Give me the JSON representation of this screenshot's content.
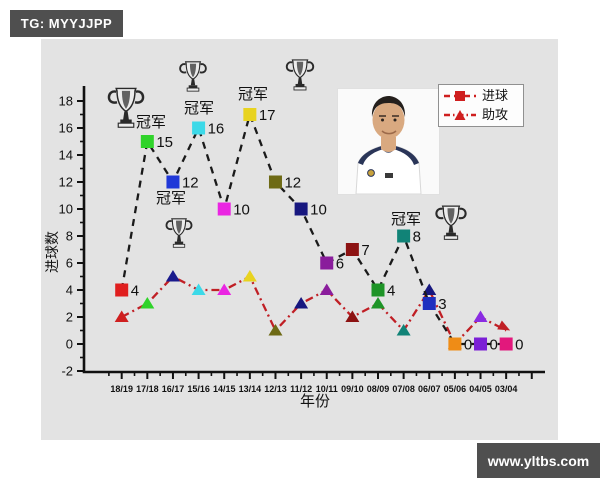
{
  "watermark_top": {
    "label": "TG: MYYJJPP",
    "bg": "#4f4f4f",
    "color": "#ffffff"
  },
  "watermark_bottom": {
    "label": "www.yltbs.com",
    "bg": "#4f4f4f",
    "color": "#ffffff"
  },
  "legend": {
    "items": [
      {
        "label": "进球",
        "marker": "square",
        "color": "#cf1f1f",
        "line_style": "dashed"
      },
      {
        "label": "助攻",
        "marker": "triangle",
        "color": "#cf1f1f",
        "line_style": "dashdot"
      }
    ]
  },
  "photo": {
    "alt": "player-portrait-white-jersey"
  },
  "chart_data": {
    "type": "line",
    "title": "",
    "xlabel": "年份",
    "ylabel": "进球数",
    "ylim": [
      -2,
      18
    ],
    "yticks": [
      -2,
      0,
      2,
      4,
      6,
      8,
      10,
      12,
      14,
      16,
      18
    ],
    "grid": false,
    "legend_position": "top-right",
    "categories": [
      "18/19",
      "17/18",
      "16/17",
      "15/16",
      "14/15",
      "13/14",
      "12/13",
      "11/12",
      "10/11",
      "09/10",
      "08/09",
      "07/08",
      "06/07",
      "05/06",
      "04/05",
      "03/04"
    ],
    "series": [
      {
        "name": "进球",
        "marker": "square",
        "line_color": "#1a1a1a",
        "line_style": "dashed",
        "values": [
          4,
          15,
          12,
          16,
          10,
          17,
          12,
          10,
          6,
          7,
          4,
          8,
          3,
          0,
          0,
          0
        ],
        "point_labels": [
          "4",
          "15",
          "12",
          "16",
          "10",
          "17",
          "12",
          "10",
          "6",
          "7",
          "4",
          "8",
          "3",
          "0",
          "0",
          "0"
        ],
        "marker_colors": [
          "#e01f1f",
          "#2fd32a",
          "#2038d8",
          "#3cd9e8",
          "#ea25e2",
          "#e8d31f",
          "#6e6a15",
          "#17177f",
          "#8a1d9c",
          "#8c1212",
          "#1e9427",
          "#118377",
          "#1f2fbf",
          "#ef8c16",
          "#7b1fd6",
          "#e2187c"
        ]
      },
      {
        "name": "助攻",
        "marker": "triangle",
        "line_color": "#c01f25",
        "line_style": "dashdot",
        "values": [
          2,
          3,
          5,
          4,
          4,
          5,
          1,
          3,
          4,
          2,
          3,
          1,
          4,
          0,
          2,
          1
        ],
        "marker_colors": [
          "#cf1f1f",
          "#2fd32a",
          "#1a1a8c",
          "#3cd9e8",
          "#ea25e2",
          "#e8d31f",
          "#6e6a15",
          "#17177f",
          "#8a1d9c",
          "#8c1212",
          "#1e9427",
          "#118377",
          "#17177f",
          "#ef8c16",
          "#8a2be2",
          "#cf1f4f"
        ]
      }
    ],
    "champion_annotations": [
      {
        "category": "17/18",
        "label": "冠军"
      },
      {
        "category": "16/17",
        "label": "冠军"
      },
      {
        "category": "15/16",
        "label": "冠军"
      },
      {
        "category": "13/14",
        "label": "冠军"
      },
      {
        "category": "07/08",
        "label": "冠军"
      }
    ]
  }
}
